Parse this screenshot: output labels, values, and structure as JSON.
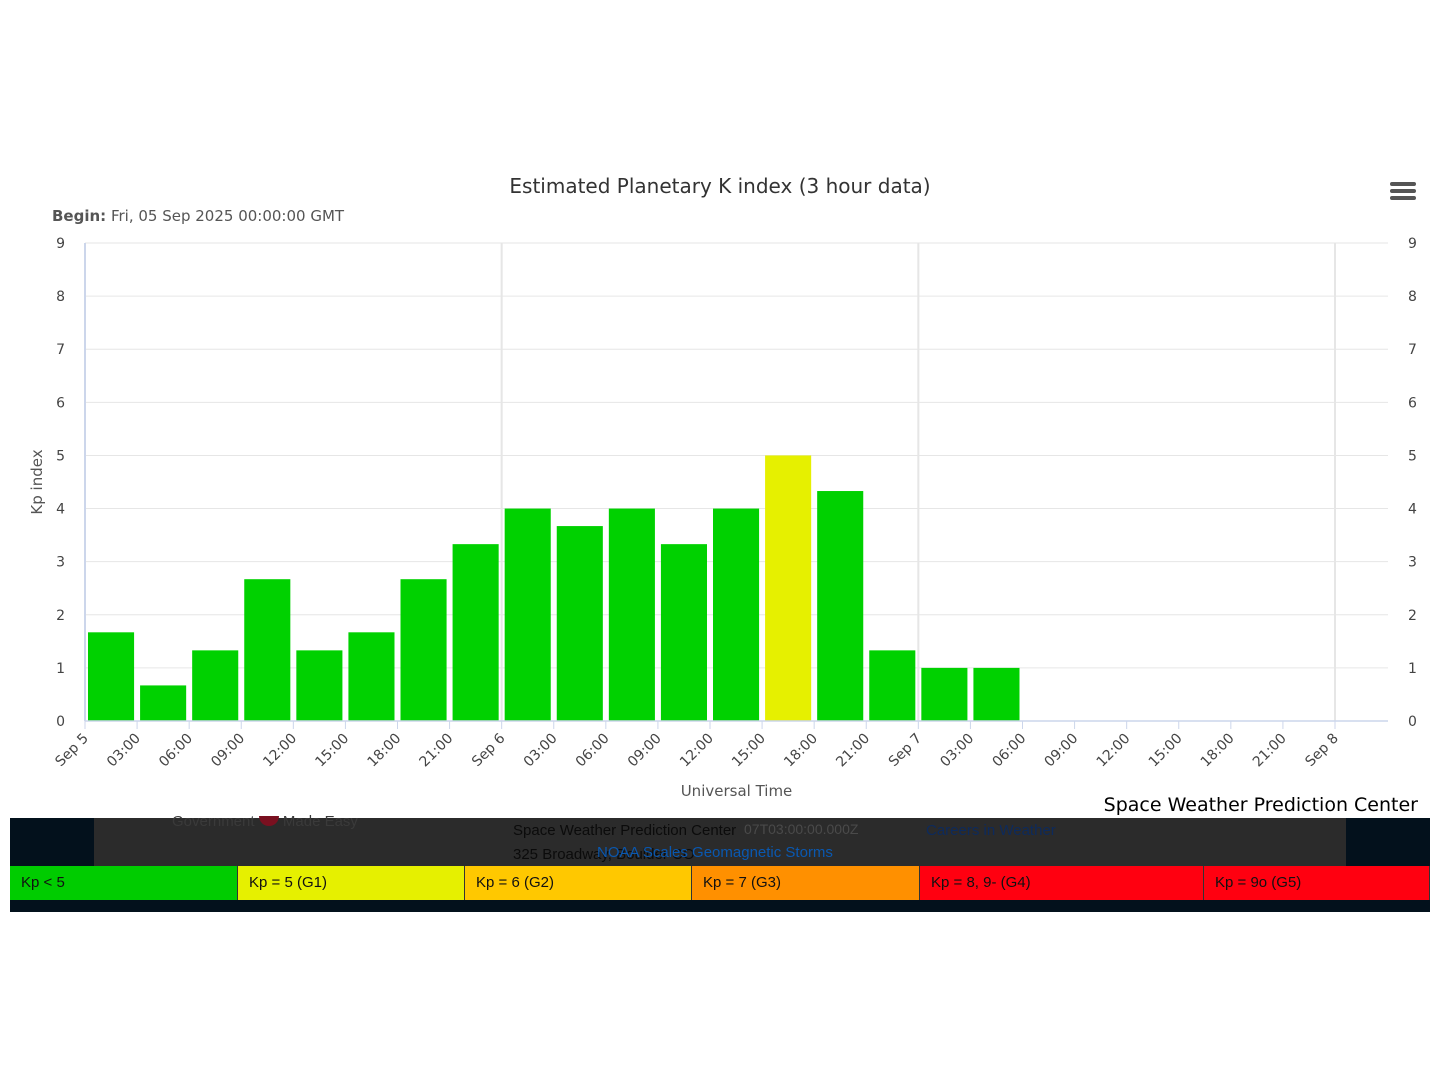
{
  "chart_data": {
    "type": "bar",
    "title": "Estimated Planetary K index (3 hour data)",
    "subtitle_label": "Begin:",
    "subtitle_value": "Fri, 05 Sep 2025 00:00:00 GMT",
    "xlabel": "Universal Time",
    "ylabel": "Kp index",
    "ylim": [
      0,
      9
    ],
    "yticks": [
      "0",
      "1",
      "2",
      "3",
      "4",
      "5",
      "6",
      "7",
      "8",
      "9"
    ],
    "xticks": [
      "Sep 5",
      "03:00",
      "06:00",
      "09:00",
      "12:00",
      "15:00",
      "18:00",
      "21:00",
      "Sep 6",
      "03:00",
      "06:00",
      "09:00",
      "12:00",
      "15:00",
      "18:00",
      "21:00",
      "Sep 7",
      "03:00",
      "06:00",
      "09:00",
      "12:00",
      "15:00",
      "18:00",
      "21:00",
      "Sep 8"
    ],
    "categories": [
      "2025-09-05 00:00",
      "2025-09-05 03:00",
      "2025-09-05 06:00",
      "2025-09-05 09:00",
      "2025-09-05 12:00",
      "2025-09-05 15:00",
      "2025-09-05 18:00",
      "2025-09-05 21:00",
      "2025-09-06 00:00",
      "2025-09-06 03:00",
      "2025-09-06 06:00",
      "2025-09-06 09:00",
      "2025-09-06 12:00",
      "2025-09-06 15:00",
      "2025-09-06 18:00",
      "2025-09-06 21:00",
      "2025-09-07 00:00",
      "2025-09-07 03:00"
    ],
    "values": [
      1.67,
      0.67,
      1.33,
      2.67,
      1.33,
      1.67,
      2.67,
      3.33,
      4.0,
      3.67,
      4.0,
      3.33,
      4.0,
      5.0,
      4.33,
      1.33,
      1.0,
      1.0
    ],
    "grid": true,
    "colors": {
      "below5": "#00d100",
      "g1": "#e6f000",
      "axis": "#ccd6eb",
      "grid": "#e6e6e6"
    },
    "credit": "Space Weather Prediction Center"
  },
  "scale_legend": [
    {
      "label": "Kp < 5",
      "color": "#00cc00",
      "width": 228
    },
    {
      "label": "Kp = 5 (G1)",
      "color": "#e6f000",
      "width": 227
    },
    {
      "label": "Kp = 6 (G2)",
      "color": "#ffc800",
      "width": 227
    },
    {
      "label": "Kp = 7 (G3)",
      "color": "#ff9000",
      "width": 228
    },
    {
      "label": "Kp = 8, 9- (G4)",
      "color": "#ff0010",
      "width": 284
    },
    {
      "label": "Kp = 9o (G5)",
      "color": "#ff0010",
      "width": 226
    }
  ],
  "footer_text": {
    "gov_left": "Government",
    "gov_right": "Made Easy",
    "center_name": "Space Weather Prediction Center",
    "timestamp": "07T03:00:00.000Z",
    "address": "325 Broadway, Boulder CO",
    "scales_link": "NOAA Scales Geomagnetic Storms",
    "careers": "Careers in Weather"
  }
}
